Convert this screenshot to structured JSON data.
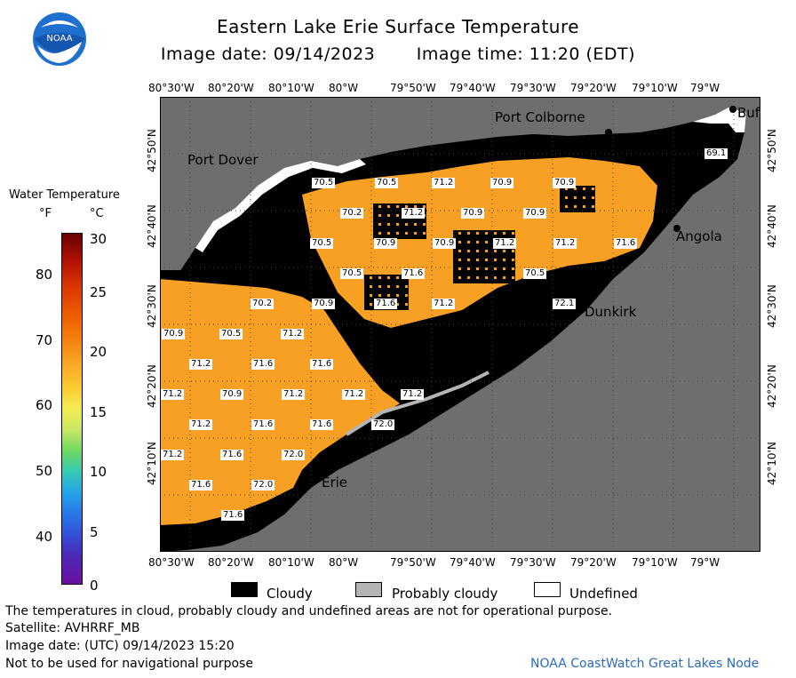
{
  "title": "Eastern Lake Erie Surface Temperature",
  "image_date": "Image date: 09/14/2023",
  "image_time": "Image time: 11:20 (EDT)",
  "legend": {
    "title": "Water Temperature",
    "unit_f": "°F",
    "unit_c": "°C",
    "ticks_f": [
      "80",
      "70",
      "60",
      "50",
      "40"
    ],
    "ticks_c": [
      "30",
      "25",
      "20",
      "15",
      "10",
      "5",
      "0"
    ]
  },
  "longitude_labels": [
    "80°30'W",
    "80°20'W",
    "80°10'W",
    "80°W",
    "79°50'W",
    "79°40'W",
    "79°30'W",
    "79°20'W",
    "79°10'W",
    "79°W"
  ],
  "latitude_labels": [
    "42°50'N",
    "42°40'N",
    "42°30'N",
    "42°20'N",
    "42°10'N"
  ],
  "places": {
    "port_colborne": "Port Colborne",
    "port_dover": "Port Dover",
    "angola": "Angola",
    "dunkirk": "Dunkirk",
    "erie": "Erie",
    "buffalo": "Buf"
  },
  "temperatures": [
    {
      "v": "70.5"
    },
    {
      "v": "70.5"
    },
    {
      "v": "71.2"
    },
    {
      "v": "70.9"
    },
    {
      "v": "70.9"
    },
    {
      "v": "69.1"
    },
    {
      "v": "70.2"
    },
    {
      "v": "71.2"
    },
    {
      "v": "70.9"
    },
    {
      "v": "70.9"
    },
    {
      "v": "70.5"
    },
    {
      "v": "70.9"
    },
    {
      "v": "70.9"
    },
    {
      "v": "71.2"
    },
    {
      "v": "71.2"
    },
    {
      "v": "71.6"
    },
    {
      "v": "70.5"
    },
    {
      "v": "71.6"
    },
    {
      "v": "70.5"
    },
    {
      "v": "70.2"
    },
    {
      "v": "70.9"
    },
    {
      "v": "71.6"
    },
    {
      "v": "71.2"
    },
    {
      "v": "72.1"
    },
    {
      "v": "70.9"
    },
    {
      "v": "70.5"
    },
    {
      "v": "71.2"
    },
    {
      "v": "71.2"
    },
    {
      "v": "71.6"
    },
    {
      "v": "71.6"
    },
    {
      "v": "71.2"
    },
    {
      "v": "70.9"
    },
    {
      "v": "71.2"
    },
    {
      "v": "71.2"
    },
    {
      "v": "71.2"
    },
    {
      "v": "71.2"
    },
    {
      "v": "71.6"
    },
    {
      "v": "71.6"
    },
    {
      "v": "72.0"
    },
    {
      "v": "71.2"
    },
    {
      "v": "71.6"
    },
    {
      "v": "72.0"
    },
    {
      "v": "71.6"
    },
    {
      "v": "72.0"
    },
    {
      "v": "71.6"
    }
  ],
  "map_key": {
    "cloudy": "Cloudy",
    "probably_cloudy": "Probably cloudy",
    "undefined": "Undefined"
  },
  "colors": {
    "water_warm": "#f8a023",
    "land": "#6e6e6e",
    "cloud": "#000000",
    "probably_cloud": "#b4b4b4",
    "undefined": "#ffffff"
  },
  "footer": {
    "note": "The temperatures in cloud, probably cloudy and undefined areas are not for operational purpose.",
    "satellite": "Satellite: AVHRRF_MB",
    "utc": "Image date: (UTC) 09/14/2023  15:20",
    "nav": "Not to be used for navigational purpose",
    "credit": "NOAA CoastWatch Great Lakes Node"
  }
}
